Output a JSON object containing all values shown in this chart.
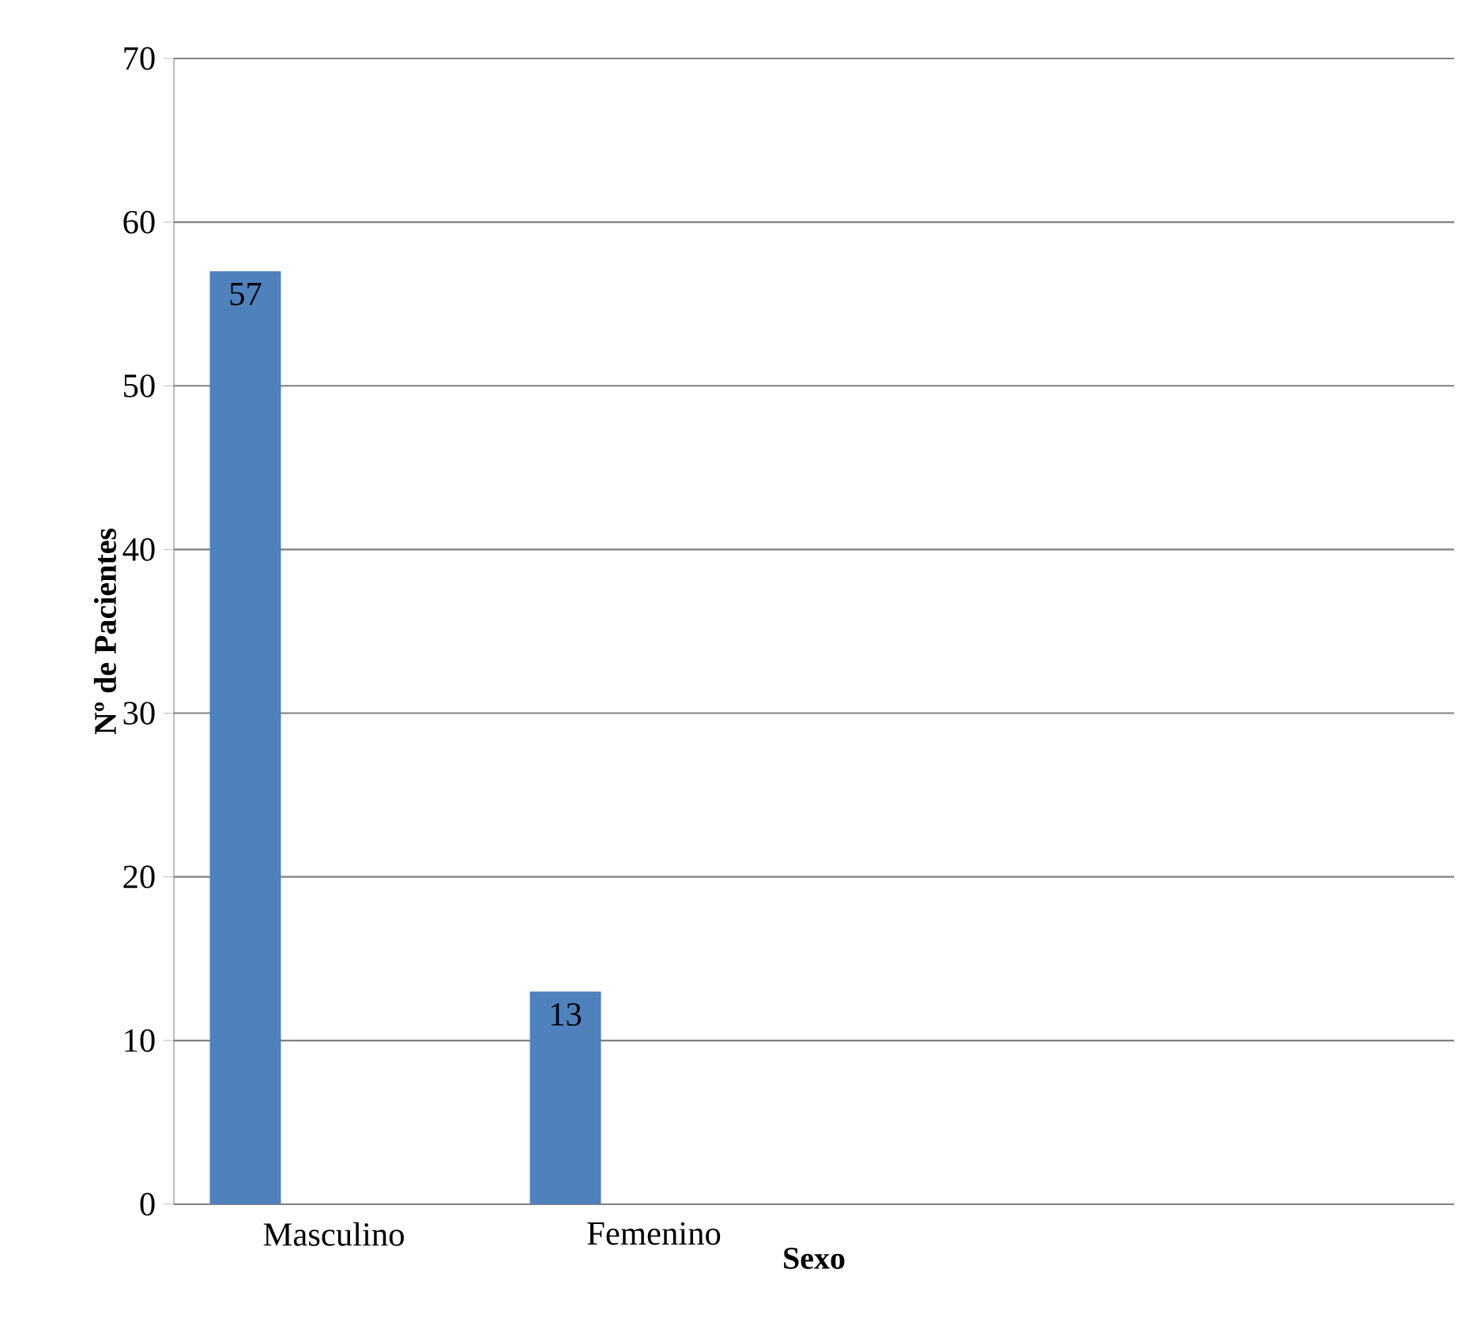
{
  "chart_data": {
    "type": "bar",
    "xlabel": "Sexo",
    "ylabel": "Nº de Pacientes",
    "categories": [
      "Masculino",
      "Femenino",
      null,
      null
    ],
    "values": [
      57,
      13,
      null,
      null
    ],
    "color": "#4f81bd",
    "ylim": [
      0,
      70
    ],
    "yticks": [
      0,
      10,
      20,
      30,
      40,
      50,
      60,
      70
    ],
    "grid": "y",
    "data_labels": true
  }
}
